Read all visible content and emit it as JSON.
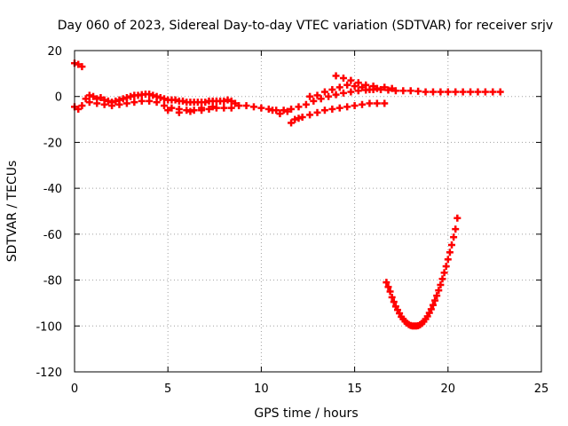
{
  "chart_data": {
    "type": "scatter",
    "title": "Day 060 of 2023, Sidereal Day-to-day VTEC variation (SDTVAR) for receiver srjv",
    "xlabel": "GPS time / hours",
    "ylabel": "SDTVAR / TECUs",
    "xlim": [
      0,
      25
    ],
    "ylim": [
      -120,
      20
    ],
    "xticks": [
      0,
      5,
      10,
      15,
      20,
      25
    ],
    "yticks": [
      20,
      0,
      -20,
      -40,
      -60,
      -80,
      -100,
      -120
    ],
    "grid": true,
    "marker_color": "#ff0000",
    "series": [
      {
        "points": [
          [
            0.0,
            14.5
          ],
          [
            0.2,
            14.0
          ],
          [
            0.4,
            13.0
          ],
          [
            0.0,
            -4.5
          ],
          [
            0.2,
            -5.5
          ],
          [
            0.4,
            -4.0
          ],
          [
            0.6,
            -1.0
          ],
          [
            0.8,
            0.5
          ],
          [
            1.0,
            0.0
          ],
          [
            1.2,
            -1.0
          ],
          [
            1.4,
            -0.5
          ],
          [
            1.6,
            -1.5
          ],
          [
            1.8,
            -2.0
          ],
          [
            2.0,
            -2.5
          ],
          [
            2.2,
            -2.0
          ],
          [
            2.4,
            -1.5
          ],
          [
            2.6,
            -1.0
          ],
          [
            2.8,
            -0.5
          ],
          [
            3.0,
            0.0
          ],
          [
            3.2,
            0.5
          ],
          [
            3.4,
            0.5
          ],
          [
            3.6,
            0.8
          ],
          [
            3.8,
            1.0
          ],
          [
            4.0,
            1.0
          ],
          [
            4.2,
            0.5
          ],
          [
            4.4,
            0.0
          ],
          [
            4.6,
            -0.5
          ],
          [
            4.8,
            -1.0
          ],
          [
            5.0,
            -1.5
          ],
          [
            5.2,
            -1.5
          ],
          [
            5.4,
            -1.5
          ],
          [
            5.6,
            -2.0
          ],
          [
            5.8,
            -2.0
          ],
          [
            6.0,
            -2.5
          ],
          [
            6.2,
            -2.5
          ],
          [
            6.4,
            -2.5
          ],
          [
            6.6,
            -2.5
          ],
          [
            6.8,
            -2.5
          ],
          [
            7.0,
            -2.5
          ],
          [
            7.2,
            -2.0
          ],
          [
            7.4,
            -2.0
          ],
          [
            7.6,
            -2.0
          ],
          [
            7.8,
            -2.0
          ],
          [
            8.0,
            -2.0
          ],
          [
            8.2,
            -1.5
          ],
          [
            8.4,
            -2.0
          ],
          [
            8.6,
            -3.0
          ],
          [
            8.8,
            -4.0
          ],
          [
            0.8,
            -2.5
          ],
          [
            1.2,
            -3.0
          ],
          [
            1.6,
            -3.5
          ],
          [
            2.0,
            -4.0
          ],
          [
            2.4,
            -3.5
          ],
          [
            2.8,
            -3.0
          ],
          [
            3.2,
            -2.5
          ],
          [
            3.6,
            -2.0
          ],
          [
            4.0,
            -2.0
          ],
          [
            4.4,
            -2.5
          ],
          [
            4.8,
            -4.0
          ],
          [
            5.2,
            -5.0
          ],
          [
            5.6,
            -5.5
          ],
          [
            6.0,
            -6.0
          ],
          [
            6.4,
            -6.0
          ],
          [
            6.8,
            -6.0
          ],
          [
            7.2,
            -5.5
          ],
          [
            7.6,
            -5.0
          ],
          [
            8.0,
            -5.0
          ],
          [
            8.4,
            -5.0
          ],
          [
            5.0,
            -6.0
          ],
          [
            5.6,
            -7.0
          ],
          [
            6.2,
            -6.5
          ],
          [
            6.8,
            -5.0
          ],
          [
            7.4,
            -4.5
          ],
          [
            9.2,
            -4.0
          ],
          [
            9.6,
            -4.5
          ],
          [
            10.0,
            -5.0
          ],
          [
            10.4,
            -5.5
          ],
          [
            10.8,
            -6.0
          ],
          [
            11.2,
            -6.0
          ],
          [
            11.6,
            -5.5
          ],
          [
            12.0,
            -4.5
          ],
          [
            12.4,
            -3.5
          ],
          [
            12.8,
            -2.0
          ],
          [
            13.2,
            -1.0
          ],
          [
            13.6,
            0.0
          ],
          [
            14.0,
            0.8
          ],
          [
            14.4,
            1.5
          ],
          [
            14.8,
            2.0
          ],
          [
            15.2,
            2.5
          ],
          [
            15.6,
            2.8
          ],
          [
            16.0,
            3.0
          ],
          [
            16.4,
            3.0
          ],
          [
            16.8,
            2.8
          ],
          [
            17.2,
            2.5
          ],
          [
            17.6,
            2.5
          ],
          [
            18.0,
            2.5
          ],
          [
            18.4,
            2.3
          ],
          [
            18.8,
            2.0
          ],
          [
            19.2,
            2.0
          ],
          [
            19.6,
            2.0
          ],
          [
            20.0,
            2.0
          ],
          [
            20.4,
            2.0
          ],
          [
            20.8,
            2.0
          ],
          [
            21.2,
            2.0
          ],
          [
            21.6,
            2.0
          ],
          [
            22.0,
            2.0
          ],
          [
            22.4,
            2.0
          ],
          [
            22.8,
            2.0
          ],
          [
            10.6,
            -6.0
          ],
          [
            11.0,
            -7.5
          ],
          [
            11.4,
            -6.5
          ],
          [
            12.6,
            0.0
          ],
          [
            13.0,
            0.5
          ],
          [
            13.4,
            2.0
          ],
          [
            13.8,
            3.0
          ],
          [
            14.2,
            4.0
          ],
          [
            14.6,
            5.0
          ],
          [
            15.0,
            4.5
          ],
          [
            15.4,
            4.0
          ],
          [
            15.8,
            3.0
          ],
          [
            16.2,
            3.5
          ],
          [
            16.6,
            4.0
          ],
          [
            17.0,
            3.5
          ],
          [
            14.0,
            9.0
          ],
          [
            14.4,
            8.0
          ],
          [
            14.8,
            7.0
          ],
          [
            15.2,
            6.0
          ],
          [
            15.6,
            5.0
          ],
          [
            16.0,
            4.5
          ],
          [
            11.6,
            -11.5
          ],
          [
            11.8,
            -10.0
          ],
          [
            12.0,
            -9.5
          ],
          [
            12.2,
            -9.0
          ],
          [
            12.6,
            -8.0
          ],
          [
            13.0,
            -7.0
          ],
          [
            13.4,
            -6.0
          ],
          [
            13.8,
            -5.5
          ],
          [
            14.2,
            -5.0
          ],
          [
            14.6,
            -4.5
          ],
          [
            15.0,
            -4.0
          ],
          [
            15.4,
            -3.5
          ],
          [
            15.8,
            -3.0
          ],
          [
            16.2,
            -3.0
          ],
          [
            16.6,
            -3.0
          ],
          [
            16.7,
            -81.0
          ],
          [
            16.8,
            -83.0
          ],
          [
            16.9,
            -85.0
          ],
          [
            17.0,
            -87.5
          ],
          [
            17.1,
            -89.5
          ],
          [
            17.2,
            -91.5
          ],
          [
            17.3,
            -93.0
          ],
          [
            17.4,
            -94.5
          ],
          [
            17.5,
            -96.0
          ],
          [
            17.6,
            -97.0
          ],
          [
            17.7,
            -98.0
          ],
          [
            17.8,
            -98.8
          ],
          [
            17.9,
            -99.4
          ],
          [
            18.0,
            -99.8
          ],
          [
            18.1,
            -100.0
          ],
          [
            18.2,
            -100.0
          ],
          [
            18.3,
            -100.0
          ],
          [
            18.4,
            -99.9
          ],
          [
            18.5,
            -99.5
          ],
          [
            18.6,
            -98.9
          ],
          [
            18.7,
            -98.1
          ],
          [
            18.8,
            -97.0
          ],
          [
            18.9,
            -95.8
          ],
          [
            19.0,
            -94.3
          ],
          [
            19.1,
            -92.7
          ],
          [
            19.2,
            -90.9
          ],
          [
            19.3,
            -88.9
          ],
          [
            19.4,
            -86.8
          ],
          [
            19.5,
            -84.5
          ],
          [
            19.6,
            -82.1
          ],
          [
            19.7,
            -79.5
          ],
          [
            19.8,
            -76.8
          ],
          [
            19.9,
            -74.0
          ],
          [
            20.0,
            -71.0
          ],
          [
            20.1,
            -67.9
          ],
          [
            20.2,
            -64.7
          ],
          [
            20.3,
            -61.3
          ],
          [
            20.4,
            -57.8
          ],
          [
            20.5,
            -53.0
          ]
        ]
      }
    ]
  }
}
